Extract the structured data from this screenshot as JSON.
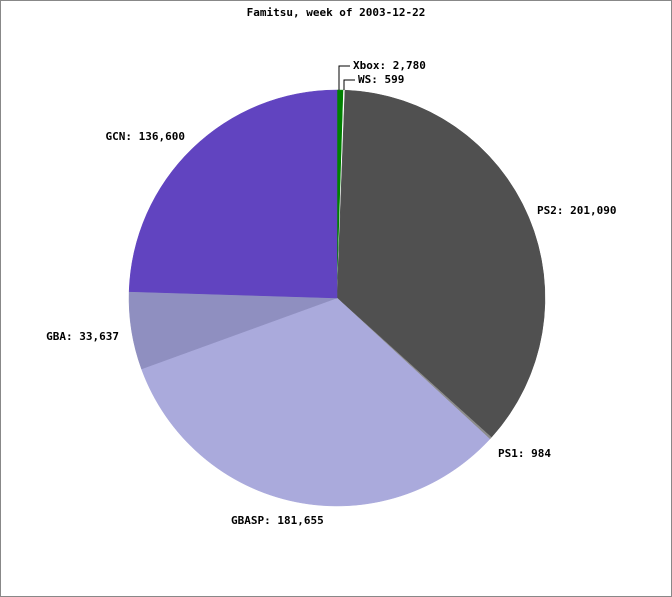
{
  "chart_data": {
    "type": "pie",
    "title": "Famitsu, week of 2003-12-22",
    "values": [
      2780,
      599,
      201090,
      984,
      181655,
      33637,
      136600
    ],
    "value_labels": [
      "Xbox: 2,780",
      "WS: 599",
      "PS2: 201,090",
      "PS1: 984",
      "GBASP: 181,655",
      "GBA: 33,637",
      "GCN: 136,600"
    ],
    "colors": [
      "#008000",
      "#ffffff",
      "#505050",
      "#8c8c8c",
      "#aaaadc",
      "#8f8fc0",
      "#6144c0"
    ]
  }
}
